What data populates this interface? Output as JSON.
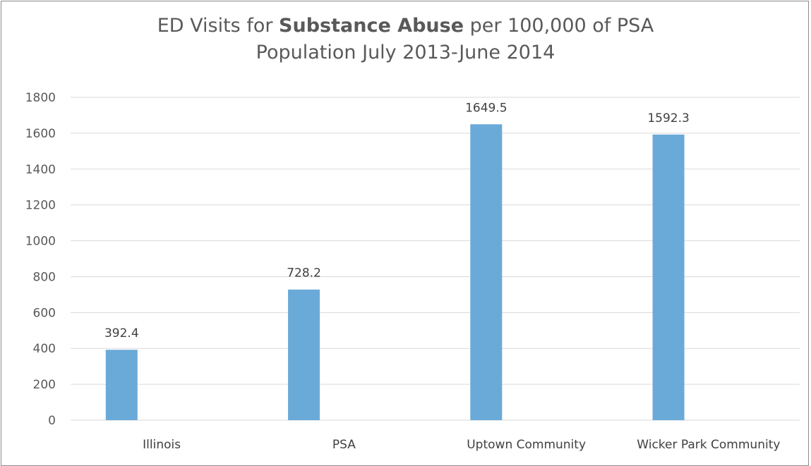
{
  "chart_data": {
    "type": "bar",
    "title_line1_prefix": "ED Visits for ",
    "title_line1_bold": "Substance Abuse",
    "title_line1_suffix": " per 100,000 of PSA",
    "title_line2": "Population July 2013-June 2014",
    "categories": [
      "Illinois",
      "PSA",
      "Uptown Community",
      "Wicker Park Community"
    ],
    "values": [
      392.4,
      728.2,
      1649.5,
      1592.3
    ],
    "value_labels": [
      "392.4",
      "728.2",
      "1649.5",
      "1592.3"
    ],
    "yticks": [
      0,
      200,
      400,
      600,
      800,
      1000,
      1200,
      1400,
      1600,
      1800
    ],
    "ylim": [
      0,
      1800
    ],
    "grid": true,
    "bar_color": "#6aaad8",
    "grid_color": "#d9d9d9"
  }
}
